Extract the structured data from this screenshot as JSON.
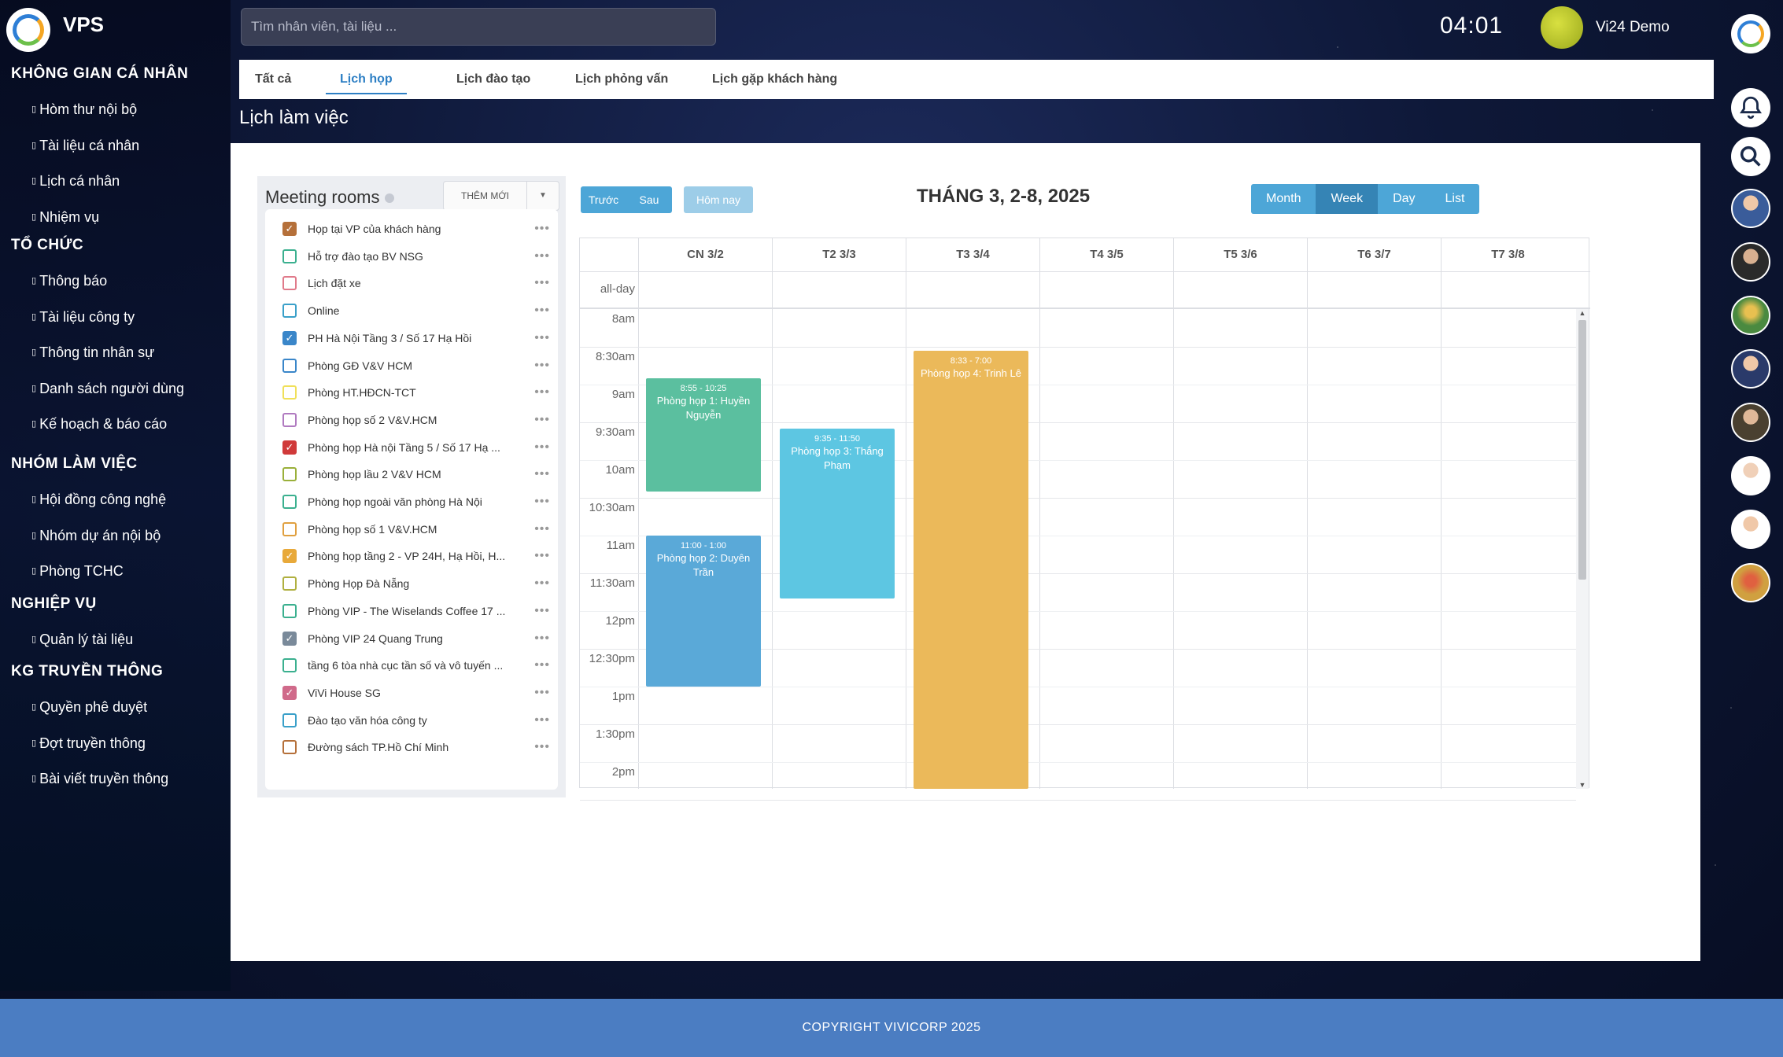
{
  "app": {
    "name": "VPS"
  },
  "search": {
    "placeholder": "Tìm nhân viên, tài liệu ..."
  },
  "clock": "04:01",
  "user": {
    "name": "Vi24 Demo"
  },
  "nav": {
    "sections": [
      {
        "title": "KHÔNG GIAN CÁ NHÂN",
        "items": [
          "Hòm thư nội bộ",
          "Tài liệu cá nhân",
          "Lịch cá nhân",
          "Nhiệm vụ"
        ]
      },
      {
        "title": "TỔ CHỨC",
        "items": [
          "Thông báo",
          "Tài liệu công ty",
          "Thông tin nhân sự",
          "Danh sách người dùng",
          "Kế hoạch & báo cáo"
        ]
      },
      {
        "title": "NHÓM LÀM VIỆC",
        "items": [
          "Hội đồng công nghệ",
          "Nhóm dự án nội bộ",
          "Phòng TCHC"
        ]
      },
      {
        "title": "NGHIỆP VỤ",
        "items": [
          "Quản lý tài liệu"
        ]
      },
      {
        "title": "KG TRUYỀN THÔNG",
        "items": [
          "Quyền phê duyệt",
          "Đợt truyền thông",
          "Bài viết truyền thông"
        ]
      }
    ]
  },
  "tabs": [
    "Tất cả",
    "Lịch họp",
    "Lịch đào tạo",
    "Lịch phỏng vấn",
    "Lịch gặp khách hàng"
  ],
  "active_tab": "Lịch họp",
  "page_title": "Lịch làm việc",
  "rooms": {
    "title": "Meeting rooms",
    "add_label": "THÊM MỚI",
    "items": [
      {
        "name": "Họp tại VP của khách hàng",
        "color": "#b5703a",
        "checked": true
      },
      {
        "name": "Hỗ trợ đào tạo BV NSG",
        "color": "#3bb08f",
        "checked": false
      },
      {
        "name": "Lịch đặt xe",
        "color": "#e07a8a",
        "checked": false
      },
      {
        "name": "Online",
        "color": "#3aa0c9",
        "checked": false
      },
      {
        "name": "PH Hà Nội Tầng 3 / Số 17 Hạ Hồi",
        "color": "#3a86c9",
        "checked": true
      },
      {
        "name": "Phòng GĐ V&V HCM",
        "color": "#3a86c9",
        "checked": false
      },
      {
        "name": "Phòng HT.HĐCN-TCT",
        "color": "#f0e05a",
        "checked": false
      },
      {
        "name": "Phòng họp số 2 V&V.HCM",
        "color": "#b07ac0",
        "checked": false
      },
      {
        "name": "Phòng họp Hà nội Tầng 5 / Số 17 Hạ ...",
        "color": "#d03a3a",
        "checked": true
      },
      {
        "name": "Phòng họp lầu 2 V&V HCM",
        "color": "#9ab03a",
        "checked": false
      },
      {
        "name": "Phòng họp ngoài văn phòng Hà Nội",
        "color": "#3bb08f",
        "checked": false
      },
      {
        "name": "Phòng họp số 1 V&V.HCM",
        "color": "#e0a040",
        "checked": false
      },
      {
        "name": "Phòng họp tầng 2 - VP 24H, Hạ Hồi, H...",
        "color": "#e8a93a",
        "checked": true
      },
      {
        "name": "Phòng Họp Đà Nẵng",
        "color": "#b0b040",
        "checked": false
      },
      {
        "name": "Phòng VIP - The Wiselands Coffee 17 ...",
        "color": "#3bb08f",
        "checked": false
      },
      {
        "name": "Phòng VIP 24 Quang Trung",
        "color": "#7a8a9a",
        "checked": true
      },
      {
        "name": "tầng 6 tòa nhà cục tần số và vô tuyến ...",
        "color": "#3bb08f",
        "checked": false
      },
      {
        "name": "ViVi House SG",
        "color": "#d06a8a",
        "checked": true
      },
      {
        "name": "Đào tạo văn hóa công ty",
        "color": "#3aa0c9",
        "checked": false
      },
      {
        "name": "Đường sách TP.Hồ Chí Minh",
        "color": "#b5703a",
        "checked": false
      }
    ]
  },
  "calendar": {
    "prev_label": "Trước",
    "next_label": "Sau",
    "today_label": "Hôm nay",
    "title": "THÁNG 3, 2-8, 2025",
    "views": [
      "Month",
      "Week",
      "Day",
      "List"
    ],
    "active_view": "Week",
    "allday_label": "all-day",
    "days": [
      "CN 3/2",
      "T2 3/3",
      "T3 3/4",
      "T4 3/5",
      "T5 3/6",
      "T6 3/7",
      "T7 3/8"
    ],
    "times": [
      "8am",
      "8:30am",
      "9am",
      "9:30am",
      "10am",
      "10:30am",
      "11am",
      "11:30am",
      "12pm",
      "12:30pm",
      "1pm",
      "1:30pm",
      "2pm"
    ],
    "events": [
      {
        "day": 0,
        "start": 8.9167,
        "end": 10.4167,
        "time": "8:55 - 10:25",
        "title": "Phòng họp 1: Huyền Nguyễn",
        "color": "#5bbf9f"
      },
      {
        "day": 0,
        "start": 11.0,
        "end": 13.0,
        "time": "11:00 - 1:00",
        "title": "Phòng họp 2: Duyên Trần",
        "color": "#5aa9d8"
      },
      {
        "day": 1,
        "start": 9.5833,
        "end": 11.8333,
        "time": "9:35 - 11:50",
        "title": "Phòng họp 3: Thắng Phạm",
        "color": "#5dc6e2"
      },
      {
        "day": 2,
        "start": 8.55,
        "end": 19.0,
        "time": "8:33 - 7:00",
        "title": "Phòng họp 4: Trinh Lê",
        "color": "#ebb95a"
      }
    ]
  },
  "footer": "COPYRIGHT VIVICORP 2025"
}
